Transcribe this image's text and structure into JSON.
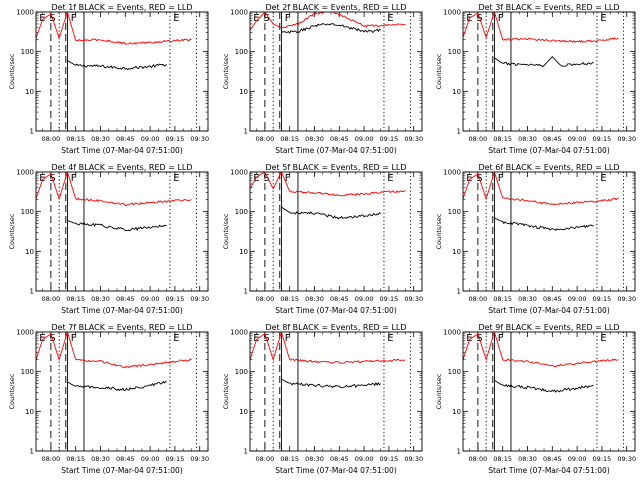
{
  "figure": {
    "ylabel": "Counts/sec",
    "xlabel": "Start Time (07-Mar-04 07:51:00)"
  },
  "chart_data": [
    {
      "type": "line",
      "title": "Det 1f BLACK = Events, RED = LLD",
      "xlabel": "Start Time (07-Mar-04 07:51:00)",
      "ylabel": "Counts/sec",
      "y_scale": "log",
      "ylim": [
        1,
        1000
      ],
      "x_ticks": [
        "08:00",
        "08:15",
        "08:30",
        "08:45",
        "09:00",
        "09:15",
        "09:30"
      ],
      "y_ticks": [
        "1",
        "10",
        "100",
        "1000"
      ],
      "markers": [
        "E",
        "S",
        "F",
        "E"
      ],
      "series": [
        {
          "name": "BLACK = Events",
          "color": "#000000",
          "x": [
            "08:10",
            "08:15",
            "08:30",
            "08:45",
            "09:00",
            "09:10"
          ],
          "values": [
            60,
            45,
            43,
            38,
            42,
            48
          ]
        },
        {
          "name": "RED = LLD",
          "color": "#ff0000",
          "x": [
            "07:51",
            "07:55",
            "08:00",
            "08:05",
            "08:10",
            "08:15",
            "08:30",
            "08:45",
            "09:00",
            "09:15",
            "09:25"
          ],
          "values": [
            220,
            650,
            900,
            220,
            1000,
            190,
            200,
            160,
            170,
            190,
            200
          ]
        }
      ]
    },
    {
      "type": "line",
      "title": "Det 2f BLACK = Events, RED = LLD",
      "xlabel": "Start Time (07-Mar-04 07:51:00)",
      "ylabel": "Counts/sec",
      "y_scale": "log",
      "ylim": [
        1,
        1000
      ],
      "x_ticks": [
        "08:00",
        "08:15",
        "08:30",
        "08:45",
        "09:00",
        "09:15",
        "09:30"
      ],
      "y_ticks": [
        "1",
        "10",
        "100",
        "1000"
      ],
      "markers": [
        "E",
        "S",
        "F",
        "E"
      ],
      "series": [
        {
          "name": "BLACK = Events",
          "color": "#000000",
          "x": [
            "08:10",
            "08:20",
            "08:30",
            "08:40",
            "08:50",
            "09:00",
            "09:10"
          ],
          "values": [
            300,
            320,
            450,
            500,
            420,
            320,
            350
          ]
        },
        {
          "name": "RED = LLD",
          "color": "#ff0000",
          "x": [
            "07:51",
            "07:55",
            "08:00",
            "08:05",
            "08:10",
            "08:20",
            "08:30",
            "08:40",
            "08:50",
            "09:00",
            "09:10",
            "09:20",
            "09:25"
          ],
          "values": [
            350,
            600,
            1000,
            500,
            400,
            500,
            900,
            1050,
            700,
            450,
            450,
            500,
            480
          ]
        }
      ]
    },
    {
      "type": "line",
      "title": "Det 3f BLACK = Events, RED = LLD",
      "xlabel": "Start Time (07-Mar-04 07:51:00)",
      "ylabel": "Counts/sec",
      "y_scale": "log",
      "ylim": [
        1,
        1000
      ],
      "x_ticks": [
        "08:00",
        "08:15",
        "08:30",
        "08:45",
        "09:00",
        "09:15",
        "09:30"
      ],
      "y_ticks": [
        "1",
        "10",
        "100",
        "1000"
      ],
      "markers": [
        "E",
        "S",
        "F",
        "E"
      ],
      "series": [
        {
          "name": "BLACK = Events",
          "color": "#000000",
          "x": [
            "08:10",
            "08:15",
            "08:30",
            "08:40",
            "08:45",
            "08:50",
            "09:00",
            "09:10"
          ],
          "values": [
            70,
            50,
            48,
            45,
            75,
            45,
            48,
            52
          ]
        },
        {
          "name": "RED = LLD",
          "color": "#ff0000",
          "x": [
            "07:51",
            "07:55",
            "08:00",
            "08:05",
            "08:10",
            "08:15",
            "08:30",
            "08:45",
            "09:00",
            "09:15",
            "09:25"
          ],
          "values": [
            230,
            700,
            950,
            230,
            1000,
            200,
            210,
            190,
            180,
            190,
            220
          ]
        }
      ]
    },
    {
      "type": "line",
      "title": "Det 4f BLACK = Events, RED = LLD",
      "xlabel": "Start Time (07-Mar-04 07:51:00)",
      "ylabel": "Counts/sec",
      "y_scale": "log",
      "ylim": [
        1,
        1000
      ],
      "x_ticks": [
        "08:00",
        "08:15",
        "08:30",
        "08:45",
        "09:00",
        "09:15",
        "09:30"
      ],
      "y_ticks": [
        "1",
        "10",
        "100",
        "1000"
      ],
      "markers": [
        "E",
        "S",
        "F",
        "E"
      ],
      "series": [
        {
          "name": "BLACK = Events",
          "color": "#000000",
          "x": [
            "08:10",
            "08:15",
            "08:30",
            "08:45",
            "09:00",
            "09:10"
          ],
          "values": [
            60,
            50,
            45,
            35,
            40,
            45
          ]
        },
        {
          "name": "RED = LLD",
          "color": "#ff0000",
          "x": [
            "07:51",
            "07:55",
            "08:00",
            "08:05",
            "08:10",
            "08:15",
            "08:30",
            "08:45",
            "09:00",
            "09:15",
            "09:25"
          ],
          "values": [
            210,
            650,
            900,
            210,
            1000,
            210,
            190,
            150,
            170,
            190,
            200
          ]
        }
      ]
    },
    {
      "type": "line",
      "title": "Det 5f BLACK = Events, RED = LLD",
      "xlabel": "Start Time (07-Mar-04 07:51:00)",
      "ylabel": "Counts/sec",
      "y_scale": "log",
      "ylim": [
        1,
        1000
      ],
      "x_ticks": [
        "08:00",
        "08:15",
        "08:30",
        "08:45",
        "09:00",
        "09:15",
        "09:30"
      ],
      "y_ticks": [
        "1",
        "10",
        "100",
        "1000"
      ],
      "markers": [
        "E",
        "S",
        "F",
        "E"
      ],
      "series": [
        {
          "name": "BLACK = Events",
          "color": "#000000",
          "x": [
            "08:10",
            "08:15",
            "08:30",
            "08:45",
            "09:00",
            "09:10"
          ],
          "values": [
            130,
            95,
            90,
            70,
            80,
            90
          ]
        },
        {
          "name": "RED = LLD",
          "color": "#ff0000",
          "x": [
            "07:51",
            "07:55",
            "08:00",
            "08:05",
            "08:10",
            "08:15",
            "08:30",
            "08:45",
            "09:00",
            "09:15",
            "09:25"
          ],
          "values": [
            380,
            750,
            1000,
            380,
            1000,
            320,
            300,
            260,
            280,
            320,
            330
          ]
        }
      ]
    },
    {
      "type": "line",
      "title": "Det 6f BLACK = Events, RED = LLD",
      "xlabel": "Start Time (07-Mar-04 07:51:00)",
      "ylabel": "Counts/sec",
      "y_scale": "log",
      "ylim": [
        1,
        1000
      ],
      "x_ticks": [
        "08:00",
        "08:15",
        "08:30",
        "08:45",
        "09:00",
        "09:15",
        "09:30"
      ],
      "y_ticks": [
        "1",
        "10",
        "100",
        "1000"
      ],
      "markers": [
        "E",
        "S",
        "F",
        "E"
      ],
      "series": [
        {
          "name": "BLACK = Events",
          "color": "#000000",
          "x": [
            "08:10",
            "08:15",
            "08:30",
            "08:45",
            "09:00",
            "09:10"
          ],
          "values": [
            70,
            55,
            45,
            35,
            40,
            45
          ]
        },
        {
          "name": "RED = LLD",
          "color": "#ff0000",
          "x": [
            "07:51",
            "07:55",
            "08:00",
            "08:05",
            "08:10",
            "08:15",
            "08:30",
            "08:45",
            "09:00",
            "09:15",
            "09:25"
          ],
          "values": [
            210,
            650,
            900,
            210,
            1000,
            220,
            190,
            150,
            170,
            190,
            210
          ]
        }
      ]
    },
    {
      "type": "line",
      "title": "Det 7f BLACK = Events, RED = LLD",
      "xlabel": "Start Time (07-Mar-04 07:51:00)",
      "ylabel": "Counts/sec",
      "y_scale": "log",
      "ylim": [
        1,
        1000
      ],
      "x_ticks": [
        "08:00",
        "08:15",
        "08:30",
        "08:45",
        "09:00",
        "09:15",
        "09:30"
      ],
      "y_ticks": [
        "1",
        "10",
        "100",
        "1000"
      ],
      "markers": [
        "E",
        "S",
        "F",
        "E"
      ],
      "series": [
        {
          "name": "BLACK = Events",
          "color": "#000000",
          "x": [
            "08:10",
            "08:15",
            "08:30",
            "08:45",
            "09:00",
            "09:10"
          ],
          "values": [
            55,
            42,
            40,
            35,
            45,
            55
          ]
        },
        {
          "name": "RED = LLD",
          "color": "#ff0000",
          "x": [
            "07:51",
            "07:55",
            "08:00",
            "08:05",
            "08:10",
            "08:15",
            "08:30",
            "08:45",
            "09:00",
            "09:15",
            "09:25"
          ],
          "values": [
            200,
            650,
            900,
            200,
            1000,
            200,
            180,
            130,
            150,
            180,
            200
          ]
        }
      ]
    },
    {
      "type": "line",
      "title": "Det 8f BLACK = Events, RED = LLD",
      "xlabel": "Start Time (07-Mar-04 07:51:00)",
      "ylabel": "Counts/sec",
      "y_scale": "log",
      "ylim": [
        1,
        1000
      ],
      "x_ticks": [
        "08:00",
        "08:15",
        "08:30",
        "08:45",
        "09:00",
        "09:15",
        "09:30"
      ],
      "y_ticks": [
        "1",
        "10",
        "100",
        "1000"
      ],
      "markers": [
        "E",
        "S",
        "F",
        "E"
      ],
      "series": [
        {
          "name": "BLACK = Events",
          "color": "#000000",
          "x": [
            "08:10",
            "08:15",
            "08:30",
            "08:45",
            "09:00",
            "09:10"
          ],
          "values": [
            65,
            50,
            45,
            42,
            45,
            50
          ]
        },
        {
          "name": "RED = LLD",
          "color": "#ff0000",
          "x": [
            "07:51",
            "07:55",
            "08:00",
            "08:05",
            "08:10",
            "08:15",
            "08:30",
            "08:45",
            "09:00",
            "09:15",
            "09:25"
          ],
          "values": [
            200,
            650,
            900,
            200,
            1000,
            200,
            180,
            170,
            180,
            190,
            200
          ]
        }
      ]
    },
    {
      "type": "line",
      "title": "Det 9f BLACK = Events, RED = LLD",
      "xlabel": "Start Time (07-Mar-04 07:51:00)",
      "ylabel": "Counts/sec",
      "y_scale": "log",
      "ylim": [
        1,
        1000
      ],
      "x_ticks": [
        "08:00",
        "08:15",
        "08:30",
        "08:45",
        "09:00",
        "09:15",
        "09:30"
      ],
      "y_ticks": [
        "1",
        "10",
        "100",
        "1000"
      ],
      "markers": [
        "E",
        "S",
        "F",
        "E"
      ],
      "series": [
        {
          "name": "BLACK = Events",
          "color": "#000000",
          "x": [
            "08:10",
            "08:15",
            "08:30",
            "08:45",
            "09:00",
            "09:10"
          ],
          "values": [
            60,
            45,
            40,
            32,
            38,
            45
          ]
        },
        {
          "name": "RED = LLD",
          "color": "#ff0000",
          "x": [
            "07:51",
            "07:55",
            "08:00",
            "08:05",
            "08:10",
            "08:15",
            "08:30",
            "08:45",
            "09:00",
            "09:15",
            "09:25"
          ],
          "values": [
            200,
            650,
            900,
            200,
            1000,
            200,
            180,
            140,
            160,
            190,
            200
          ]
        }
      ]
    }
  ]
}
